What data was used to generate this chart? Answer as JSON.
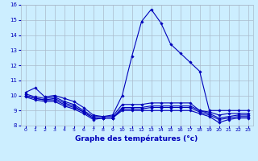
{
  "xlabel": "Graphe des températures (°c)",
  "background_color": "#cceeff",
  "grid_color": "#aabbcc",
  "line_color": "#0000bb",
  "xlim": [
    -0.5,
    23.5
  ],
  "ylim": [
    8,
    16
  ],
  "yticks": [
    8,
    9,
    10,
    11,
    12,
    13,
    14,
    15,
    16
  ],
  "xticks": [
    0,
    1,
    2,
    3,
    4,
    5,
    6,
    7,
    8,
    9,
    10,
    11,
    12,
    13,
    14,
    15,
    16,
    17,
    18,
    19,
    20,
    21,
    22,
    23
  ],
  "lines": [
    [
      10.2,
      10.5,
      9.9,
      10.0,
      9.8,
      9.6,
      9.2,
      8.7,
      8.6,
      8.7,
      10.0,
      12.6,
      14.9,
      15.7,
      14.8,
      13.4,
      12.8,
      12.2,
      11.6,
      9.0,
      9.0,
      9.0,
      9.0,
      9.0
    ],
    [
      10.1,
      9.9,
      9.8,
      9.9,
      9.6,
      9.4,
      9.0,
      8.6,
      8.6,
      8.6,
      9.4,
      9.4,
      9.4,
      9.5,
      9.5,
      9.5,
      9.5,
      9.5,
      9.0,
      8.9,
      8.7,
      8.8,
      8.8,
      8.8
    ],
    [
      10.0,
      9.8,
      9.7,
      9.8,
      9.5,
      9.3,
      8.9,
      8.5,
      8.5,
      8.5,
      9.2,
      9.2,
      9.2,
      9.3,
      9.3,
      9.3,
      9.3,
      9.3,
      9.0,
      8.8,
      8.5,
      8.6,
      8.7,
      8.7
    ],
    [
      10.0,
      9.8,
      9.7,
      9.7,
      9.4,
      9.2,
      8.9,
      8.5,
      8.5,
      8.5,
      9.1,
      9.1,
      9.1,
      9.2,
      9.2,
      9.2,
      9.2,
      9.2,
      8.9,
      8.7,
      8.4,
      8.5,
      8.6,
      8.6
    ],
    [
      9.9,
      9.7,
      9.6,
      9.6,
      9.3,
      9.1,
      8.8,
      8.4,
      8.5,
      8.5,
      9.0,
      9.0,
      9.0,
      9.0,
      9.0,
      9.0,
      9.0,
      9.0,
      8.8,
      8.6,
      8.2,
      8.4,
      8.5,
      8.5
    ]
  ]
}
